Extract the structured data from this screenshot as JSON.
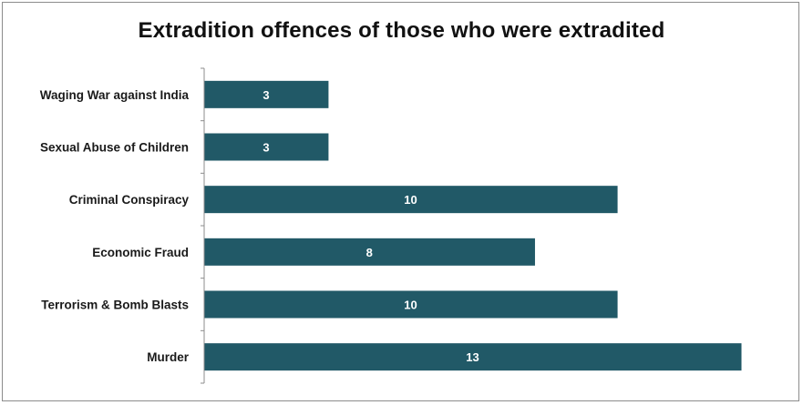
{
  "chart_data": {
    "type": "bar",
    "orientation": "horizontal",
    "title": "Extradition offences of those who were extradited",
    "xlabel": "",
    "ylabel": "",
    "categories": [
      "Waging War against India",
      "Sexual Abuse of Children",
      "Criminal Conspiracy",
      "Economic Fraud",
      "Terrorism & Bomb Blasts",
      "Murder"
    ],
    "values": [
      3,
      3,
      10,
      8,
      10,
      13
    ],
    "xlim": [
      0,
      13
    ],
    "grid": false,
    "legend": "none",
    "bar_color": "#215967",
    "value_label_color": "#ffffff"
  }
}
